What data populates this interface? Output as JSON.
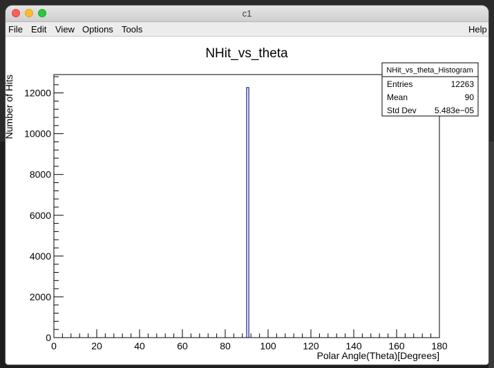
{
  "window": {
    "title": "c1"
  },
  "menubar": {
    "items": [
      "File",
      "Edit",
      "View",
      "Options",
      "Tools"
    ],
    "help": "Help"
  },
  "stats_box": {
    "name": "NHit_vs_theta_Histogram",
    "rows": [
      {
        "label": "Entries",
        "value": "12263"
      },
      {
        "label": "Mean",
        "value": "90"
      },
      {
        "label": "Std Dev",
        "value": "5.483e−05"
      }
    ]
  },
  "colors": {
    "histogram_line": "#1a1a8c",
    "axis": "#000000"
  },
  "chart_data": {
    "type": "bar",
    "title": "NHit_vs_theta",
    "xlabel": "Polar Angle(Theta)[Degrees]",
    "ylabel": "Number of Hits",
    "xlim": [
      0,
      180
    ],
    "ylim": [
      0,
      12900
    ],
    "x_ticks": [
      0,
      20,
      40,
      60,
      80,
      100,
      120,
      140,
      160,
      180
    ],
    "y_ticks": [
      0,
      2000,
      4000,
      6000,
      8000,
      10000,
      12000
    ],
    "bins": [
      {
        "x_low": 90,
        "x_high": 91,
        "value": 12263
      }
    ],
    "grid": false,
    "legend": "top-right"
  }
}
